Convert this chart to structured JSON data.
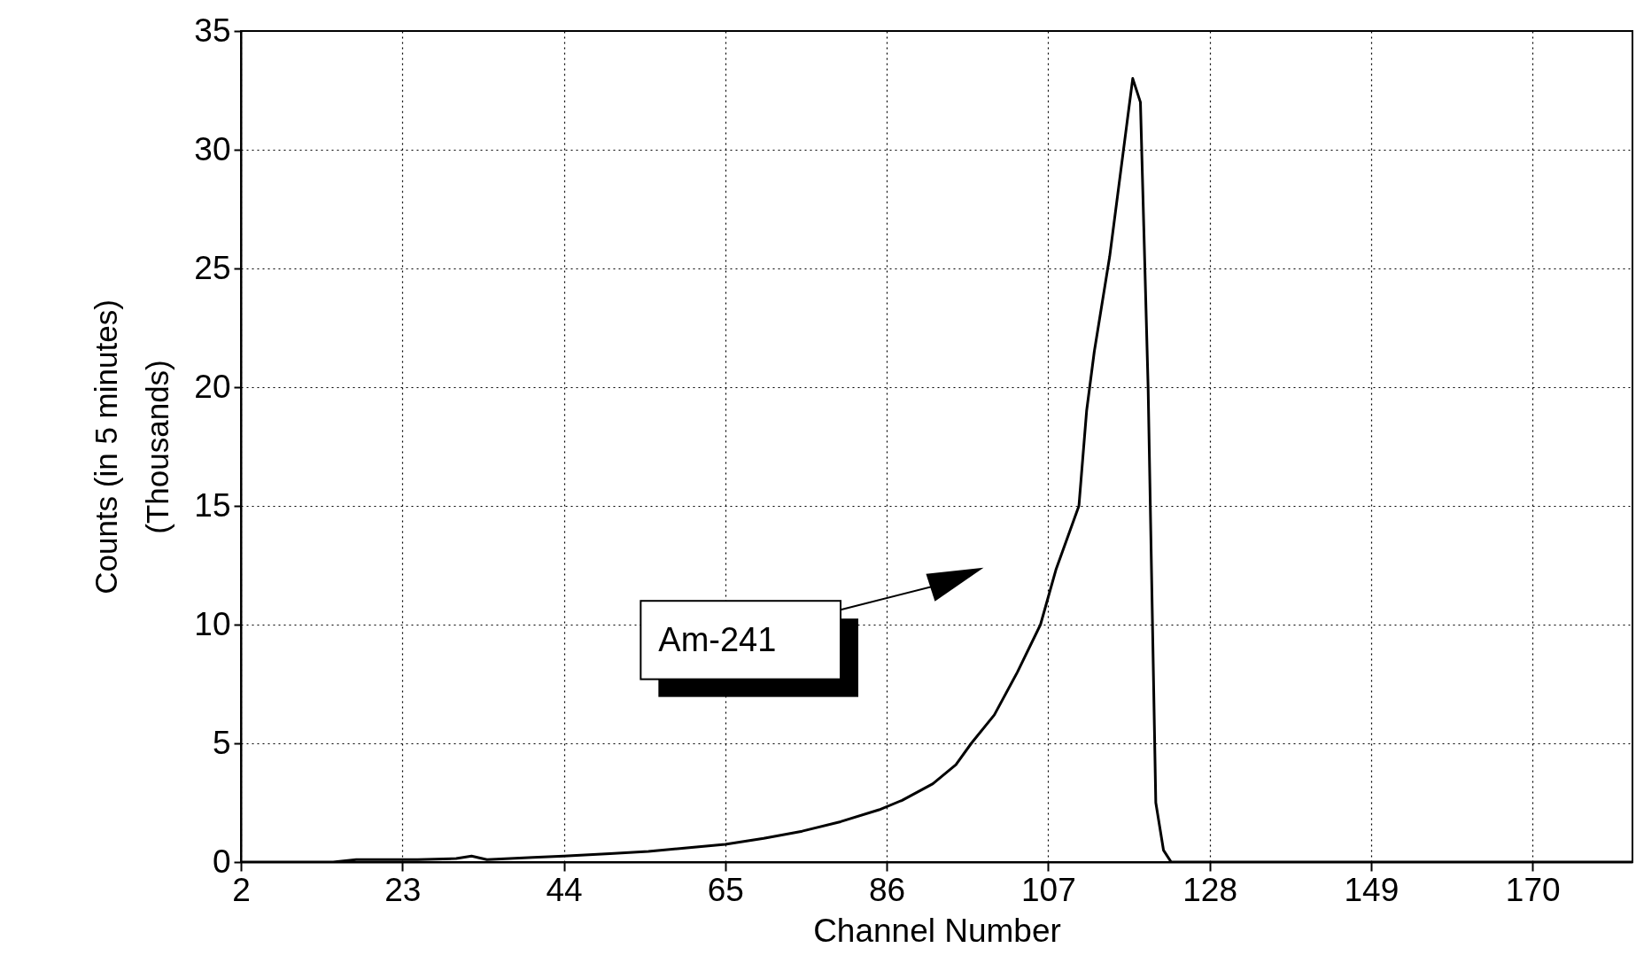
{
  "chart_data": {
    "type": "line",
    "xlabel": "Channel Number",
    "ylabel": "Counts (in 5 minutes)\n(Thousands)",
    "x": [
      2,
      10,
      14,
      17,
      25,
      30,
      32,
      34,
      40,
      44,
      50,
      55,
      60,
      65,
      70,
      75,
      80,
      85,
      88,
      92,
      95,
      97,
      100,
      103,
      106,
      108,
      111,
      112,
      113,
      115,
      117,
      118,
      119,
      120,
      121,
      122,
      123,
      130,
      150,
      183
    ],
    "series": [
      {
        "color": "#000000",
        "values": [
          0,
          0,
          0,
          0.1,
          0.1,
          0.15,
          0.25,
          0.1,
          0.2,
          0.25,
          0.35,
          0.45,
          0.6,
          0.75,
          1.0,
          1.3,
          1.7,
          2.2,
          2.6,
          3.3,
          4.1,
          5.0,
          6.2,
          8.0,
          10.0,
          12.3,
          15.0,
          19.0,
          21.5,
          25.5,
          30.5,
          33.0,
          32.0,
          20.0,
          2.5,
          0.5,
          0,
          0,
          0,
          0
        ]
      }
    ],
    "xlim": [
      2,
      183
    ],
    "xticks": [
      2,
      23,
      44,
      65,
      86,
      107,
      128,
      149,
      170
    ],
    "ylim": [
      0,
      35
    ],
    "yticks": [
      0,
      5,
      10,
      15,
      20,
      25,
      30,
      35
    ],
    "grid": true,
    "annotations": [
      "Am-241"
    ]
  }
}
